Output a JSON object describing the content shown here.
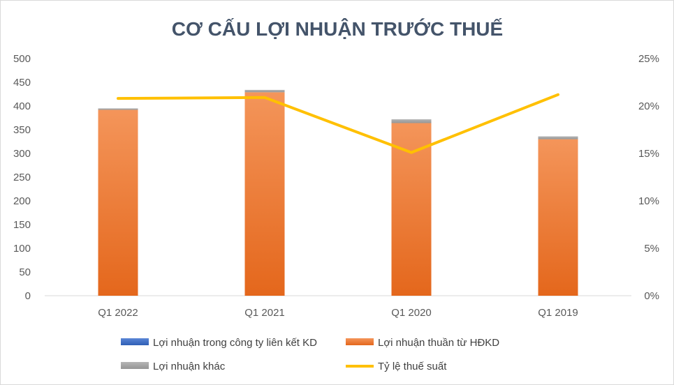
{
  "chart_data": {
    "type": "bar",
    "title": "CƠ CẤU LỢI NHUẬN TRƯỚC THUẾ",
    "categories": [
      "Q1 2022",
      "Q1 2021",
      "Q1 2020",
      "Q1 2019"
    ],
    "stacked": true,
    "series": [
      {
        "name": "Lợi nhuận trong công ty liên kết KD",
        "kind": "bar",
        "axis": "left",
        "values": [
          0,
          0,
          0,
          0
        ],
        "color": "#4472c4"
      },
      {
        "name": "Lợi nhuận thuần từ HĐKD",
        "kind": "bar",
        "axis": "left",
        "values": [
          392,
          429,
          364,
          330
        ],
        "color": "#ed7d31"
      },
      {
        "name": "Lợi nhuận khác",
        "kind": "bar",
        "axis": "left",
        "values": [
          3,
          5,
          8,
          6
        ],
        "color": "#a5a5a5"
      },
      {
        "name": "Tỷ lệ thuế suất",
        "kind": "line",
        "axis": "right",
        "values": [
          20.8,
          20.9,
          15.1,
          21.2
        ],
        "color": "#ffc000"
      }
    ],
    "left_axis": {
      "ylim": [
        0,
        500
      ],
      "ticks": [
        "0",
        "50",
        "100",
        "150",
        "200",
        "250",
        "300",
        "350",
        "400",
        "450",
        "500"
      ]
    },
    "right_axis": {
      "ylim": [
        0,
        25
      ],
      "ticks": [
        "0%",
        "5%",
        "10%",
        "15%",
        "20%",
        "25%"
      ]
    },
    "grid": false,
    "legend_position": "bottom"
  }
}
